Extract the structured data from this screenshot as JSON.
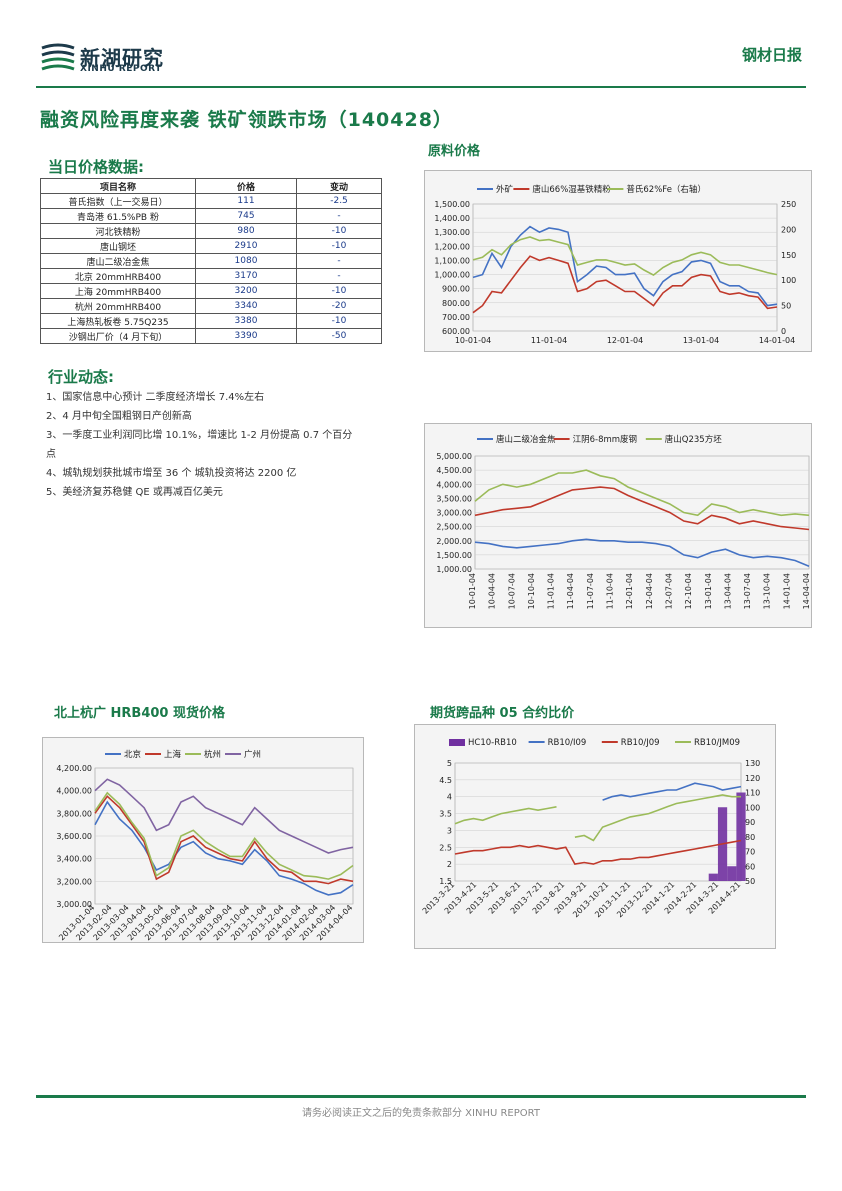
{
  "header": {
    "logo_cn": "新湖研究",
    "logo_en": "XINHU REPORT",
    "report_type": "钢材日报"
  },
  "headline": "融资风险再度来袭 铁矿领跌市场（140428）",
  "price_section": {
    "title": "当日价格数据:",
    "columns": [
      "项目名称",
      "价格",
      "变动"
    ],
    "rows": [
      [
        "普氏指数（上一交易日）",
        "111",
        "-2.5"
      ],
      [
        "青岛港 61.5%PB 粉",
        "745",
        "-"
      ],
      [
        "河北铁精粉",
        "980",
        "-10"
      ],
      [
        "唐山钢坯",
        "2910",
        "-10"
      ],
      [
        "唐山二级冶金焦",
        "1080",
        "-"
      ],
      [
        "北京 20mmHRB400",
        "3170",
        "-"
      ],
      [
        "上海 20mmHRB400",
        "3200",
        "-10"
      ],
      [
        "杭州 20mmHRB400",
        "3340",
        "-20"
      ],
      [
        "上海热轧板卷 5.75Q235",
        "3380",
        "-10"
      ],
      [
        "沙钢出厂价（4 月下旬）",
        "3390",
        "-50"
      ]
    ]
  },
  "news_section": {
    "title": "行业动态:",
    "items": [
      "1、国家信息中心预计 二季度经济增长 7.4%左右",
      "2、4 月中旬全国粗钢日产创新高",
      "3、一季度工业利润同比增 10.1%，增速比 1-2 月份提高 0.7 个百分",
      "点",
      "4、城轨规划获批城市增至 36 个 城轨投资将达 2200 亿",
      "5、美经济复苏稳健 QE 或再减百亿美元"
    ]
  },
  "charts_titles": {
    "raw": "原料价格",
    "spot": "北上杭广 HRB400 现货价格",
    "futures": "期货跨品种 05 合约比价"
  },
  "chart_data": [
    {
      "id": "raw-material",
      "type": "line",
      "series": [
        {
          "name": "外矿",
          "color": "#4472c4",
          "axis": "left",
          "values": [
            980,
            1000,
            1150,
            1050,
            1200,
            1280,
            1340,
            1300,
            1330,
            1320,
            1300,
            950,
            1000,
            1060,
            1050,
            1000,
            1000,
            1010,
            900,
            850,
            950,
            1000,
            1020,
            1090,
            1100,
            1080,
            950,
            920,
            920,
            880,
            870,
            780,
            790
          ]
        },
        {
          "name": "唐山66%湿基铁精粉",
          "color": "#c0392b",
          "axis": "left",
          "values": [
            730,
            780,
            880,
            870,
            960,
            1050,
            1130,
            1100,
            1120,
            1100,
            1080,
            880,
            900,
            950,
            960,
            920,
            880,
            880,
            830,
            780,
            870,
            920,
            920,
            980,
            1000,
            990,
            880,
            860,
            870,
            850,
            840,
            760,
            770
          ]
        },
        {
          "name": "普氏62%Fe（右轴）",
          "color": "#9bbb59",
          "axis": "right",
          "values": [
            140,
            145,
            160,
            150,
            170,
            180,
            185,
            178,
            180,
            175,
            170,
            130,
            135,
            140,
            140,
            135,
            130,
            132,
            120,
            110,
            125,
            135,
            140,
            150,
            155,
            150,
            135,
            130,
            130,
            125,
            120,
            115,
            111
          ]
        }
      ],
      "xticks": [
        "10-01-04",
        "11-01-04",
        "12-01-04",
        "13-01-04",
        "14-01-04"
      ],
      "ylim": [
        600,
        1500
      ],
      "yticks_left": [
        "1,500.00",
        "1,400.00",
        "1,300.00",
        "1,200.00",
        "1,100.00",
        "1,000.00",
        "900.00",
        "800.00",
        "700.00",
        "600.00"
      ],
      "y2lim": [
        0,
        250
      ],
      "yticks_right": [
        "250",
        "200",
        "150",
        "100",
        "50",
        "0"
      ]
    },
    {
      "id": "coke-scrap-billet",
      "type": "line",
      "series": [
        {
          "name": "唐山二级冶金焦",
          "color": "#4472c4",
          "values": [
            1950,
            1900,
            1800,
            1750,
            1800,
            1850,
            1900,
            2000,
            2050,
            2000,
            2000,
            1950,
            1950,
            1900,
            1800,
            1500,
            1400,
            1600,
            1700,
            1500,
            1400,
            1450,
            1400,
            1300,
            1100
          ]
        },
        {
          "name": "江阴6-8mm废钢",
          "color": "#c0392b",
          "values": [
            2900,
            3000,
            3100,
            3150,
            3200,
            3400,
            3600,
            3800,
            3850,
            3900,
            3850,
            3600,
            3400,
            3200,
            3000,
            2700,
            2600,
            2900,
            2800,
            2600,
            2700,
            2600,
            2500,
            2450,
            2400
          ]
        },
        {
          "name": "唐山Q235方坯",
          "color": "#9bbb59",
          "values": [
            3400,
            3800,
            4000,
            3900,
            4000,
            4200,
            4400,
            4400,
            4500,
            4300,
            4200,
            3900,
            3700,
            3500,
            3300,
            3000,
            2900,
            3300,
            3200,
            3000,
            3100,
            3000,
            2900,
            2950,
            2900
          ]
        }
      ],
      "xticks": [
        "10-01-04",
        "10-04-04",
        "10-07-04",
        "10-10-04",
        "11-01-04",
        "11-04-04",
        "11-07-04",
        "11-10-04",
        "12-01-04",
        "12-04-04",
        "12-07-04",
        "12-10-04",
        "13-01-04",
        "13-04-04",
        "13-07-04",
        "13-10-04",
        "14-01-04",
        "14-04-04"
      ],
      "ylim": [
        1000,
        5000
      ],
      "yticks": [
        "5,000.00",
        "4,500.00",
        "4,000.00",
        "3,500.00",
        "3,000.00",
        "2,500.00",
        "2,000.00",
        "1,500.00",
        "1,000.00"
      ]
    },
    {
      "id": "hrb400-spot",
      "type": "line",
      "series": [
        {
          "name": "北京",
          "color": "#4472c4",
          "values": [
            3700,
            3900,
            3750,
            3650,
            3500,
            3300,
            3350,
            3500,
            3550,
            3450,
            3400,
            3380,
            3350,
            3480,
            3380,
            3250,
            3220,
            3180,
            3120,
            3080,
            3100,
            3170
          ]
        },
        {
          "name": "上海",
          "color": "#c0392b",
          "values": [
            3800,
            3950,
            3850,
            3700,
            3550,
            3220,
            3280,
            3550,
            3600,
            3500,
            3450,
            3400,
            3380,
            3550,
            3400,
            3300,
            3280,
            3200,
            3200,
            3180,
            3220,
            3200
          ]
        },
        {
          "name": "杭州",
          "color": "#9bbb59",
          "values": [
            3820,
            3980,
            3880,
            3720,
            3580,
            3250,
            3320,
            3600,
            3650,
            3550,
            3480,
            3420,
            3420,
            3580,
            3450,
            3350,
            3300,
            3250,
            3240,
            3220,
            3260,
            3340
          ]
        },
        {
          "name": "广州",
          "color": "#8064a2",
          "values": [
            4000,
            4100,
            4050,
            3950,
            3850,
            3650,
            3700,
            3900,
            3950,
            3850,
            3800,
            3750,
            3700,
            3850,
            3750,
            3650,
            3600,
            3550,
            3500,
            3450,
            3480,
            3500
          ]
        }
      ],
      "xticks": [
        "2013-01-04",
        "2013-02-04",
        "2013-03-04",
        "2013-04-04",
        "2013-05-04",
        "2013-06-04",
        "2013-07-04",
        "2013-08-04",
        "2013-09-04",
        "2013-10-04",
        "2013-11-04",
        "2013-12-04",
        "2014-01-04",
        "2014-02-04",
        "2014-03-04",
        "2014-04-04"
      ],
      "ylim": [
        3000,
        4200
      ],
      "yticks": [
        "4,200.00",
        "4,000.00",
        "3,800.00",
        "3,600.00",
        "3,400.00",
        "3,200.00",
        "3,000.00"
      ]
    },
    {
      "id": "futures-ratio",
      "type": "line",
      "series": [
        {
          "name": "HC10-RB10",
          "color": "#7030a0",
          "kind": "area",
          "axis": "right",
          "values": [
            null,
            null,
            null,
            null,
            null,
            null,
            null,
            null,
            null,
            null,
            null,
            null,
            null,
            null,
            null,
            null,
            null,
            null,
            null,
            null,
            null,
            null,
            null,
            null,
            null,
            null,
            null,
            null,
            55,
            100,
            60,
            110
          ]
        },
        {
          "name": "RB10/I09",
          "color": "#4472c4",
          "axis": "left",
          "values": [
            null,
            null,
            null,
            null,
            null,
            null,
            null,
            null,
            null,
            null,
            null,
            null,
            null,
            null,
            null,
            null,
            3.9,
            4.0,
            4.05,
            4.0,
            4.05,
            4.1,
            4.15,
            4.2,
            4.2,
            4.3,
            4.4,
            4.35,
            4.3,
            4.2,
            4.25,
            4.3
          ]
        },
        {
          "name": "RB10/J09",
          "color": "#c0392b",
          "axis": "left",
          "values": [
            2.3,
            2.35,
            2.4,
            2.4,
            2.45,
            2.5,
            2.5,
            2.55,
            2.5,
            2.55,
            2.5,
            2.45,
            2.5,
            2.0,
            2.05,
            2.0,
            2.1,
            2.1,
            2.15,
            2.15,
            2.2,
            2.2,
            2.25,
            2.3,
            2.35,
            2.4,
            2.45,
            2.5,
            2.55,
            2.6,
            2.65,
            2.7
          ]
        },
        {
          "name": "RB10/JM09",
          "color": "#9bbb59",
          "axis": "left",
          "values": [
            3.2,
            3.3,
            3.35,
            3.3,
            3.4,
            3.5,
            3.55,
            3.6,
            3.65,
            3.6,
            3.65,
            3.7,
            null,
            2.8,
            2.85,
            2.7,
            3.1,
            3.2,
            3.3,
            3.4,
            3.45,
            3.5,
            3.6,
            3.7,
            3.8,
            3.85,
            3.9,
            3.95,
            4.0,
            4.05,
            4.0,
            4.0
          ]
        }
      ],
      "xticks": [
        "2013-3-21",
        "2013-4-21",
        "2013-5-21",
        "2013-6-21",
        "2013-7-21",
        "2013-8-21",
        "2013-9-21",
        "2013-10-21",
        "2013-11-21",
        "2013-12-21",
        "2014-1-21",
        "2014-2-21",
        "2014-3-21",
        "2014-4-21"
      ],
      "ylim": [
        1.5,
        5
      ],
      "yticks_left": [
        "5",
        "4.5",
        "4",
        "3.5",
        "3",
        "2.5",
        "2",
        "1.5"
      ],
      "y2lim": [
        50,
        130
      ],
      "yticks_right": [
        "130",
        "120",
        "110",
        "100",
        "90",
        "80",
        "70",
        "60",
        "50"
      ]
    }
  ],
  "footer": "请务必阅读正文之后的免责条款部分 XINHU REPORT"
}
